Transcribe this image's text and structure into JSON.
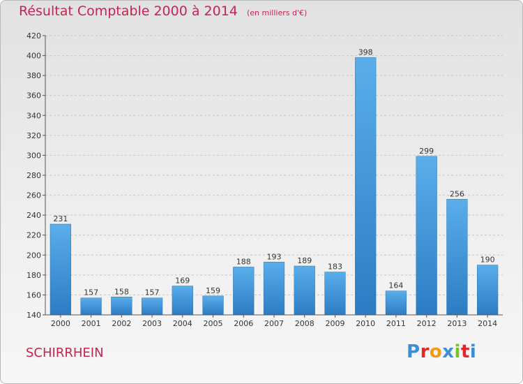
{
  "title": "Résultat Comptable 2000 à 2014",
  "subtitle": "(en milliers d'€)",
  "city": "SCHIRRHEIN",
  "logo": {
    "text": "Proxiti",
    "colors": [
      "#3a8fd6",
      "#e2272a",
      "#f39c12",
      "#3a8fd6",
      "#7cbf2a",
      "#e2272a",
      "#3a8fd6"
    ]
  },
  "chart_data": {
    "type": "bar",
    "title": "Résultat Comptable 2000 à 2014",
    "subtitle": "(en milliers d'€)",
    "xlabel": "",
    "ylabel": "",
    "categories": [
      "2000",
      "2001",
      "2002",
      "2003",
      "2004",
      "2005",
      "2006",
      "2007",
      "2008",
      "2009",
      "2010",
      "2011",
      "2012",
      "2013",
      "2014"
    ],
    "values": [
      231,
      157,
      158,
      157,
      169,
      159,
      188,
      193,
      189,
      183,
      398,
      164,
      299,
      256,
      190
    ],
    "ylim": [
      140,
      420
    ],
    "yticks": [
      140,
      160,
      180,
      200,
      220,
      240,
      260,
      280,
      300,
      320,
      340,
      360,
      380,
      400,
      420
    ],
    "grid": true,
    "bar_color": "#3d8fd8"
  }
}
